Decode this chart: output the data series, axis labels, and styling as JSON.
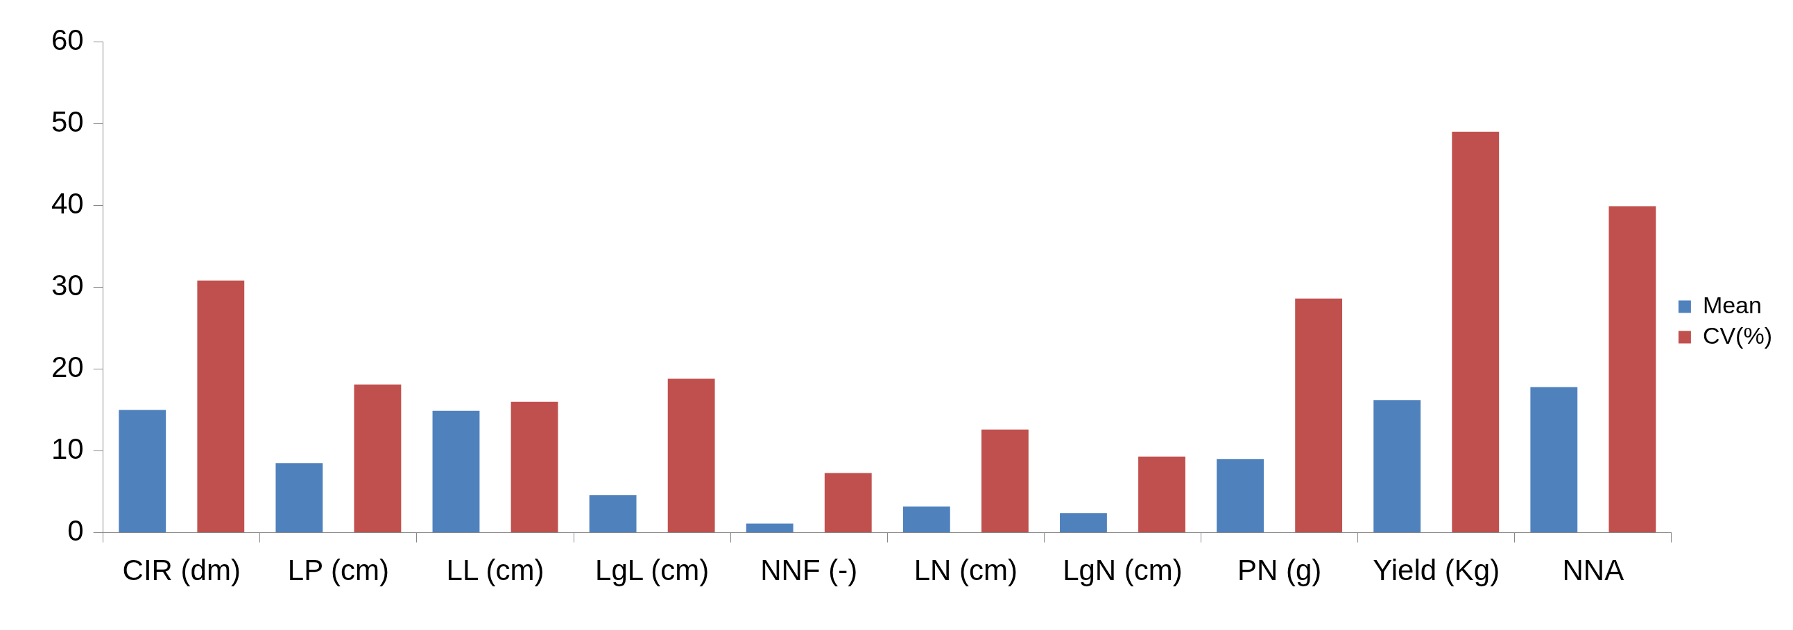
{
  "chart_data": {
    "type": "bar",
    "categories": [
      "CIR (dm)",
      "LP (cm)",
      "LL (cm)",
      "LgL (cm)",
      "NNF (-)",
      "LN (cm)",
      "LgN (cm)",
      "PN (g)",
      "Yield (Kg)",
      "NNA"
    ],
    "series": [
      {
        "name": "Mean",
        "color": "#4f81bd",
        "values": [
          15,
          8.5,
          14.9,
          4.6,
          1.1,
          3.2,
          2.4,
          9,
          16.2,
          17.8
        ]
      },
      {
        "name": "CV(%)",
        "color": "#c0504d",
        "values": [
          30.8,
          18.1,
          16,
          18.8,
          7.3,
          12.6,
          9.3,
          28.6,
          49,
          39.9
        ]
      }
    ],
    "ylim": [
      0,
      60
    ],
    "yticks": [
      0,
      10,
      20,
      30,
      40,
      50,
      60
    ],
    "grid": false,
    "legend": "right"
  }
}
